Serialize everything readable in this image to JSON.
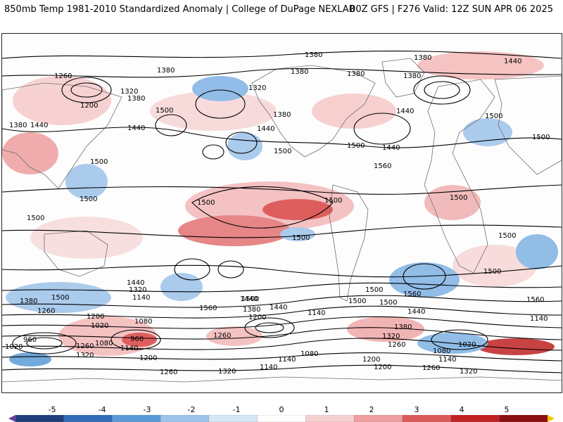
{
  "header": {
    "left_title": "850mb Temp 1981-2010 Standardized Anomaly | College of DuPage NEXLAB",
    "right_title": "00Z GFS | F276 Valid: 12Z SUN APR 06 2025"
  },
  "map": {
    "contour_labels": [
      "1380",
      "1380",
      "1380",
      "1380",
      "1380",
      "1380",
      "1440",
      "1440",
      "1260",
      "1320",
      "1200",
      "1380",
      "1500",
      "1380",
      "1440",
      "1320",
      "1440",
      "1380",
      "1440",
      "1500",
      "1500",
      "1500",
      "1500",
      "1440",
      "1500",
      "1560",
      "1500",
      "1500",
      "1500",
      "1500",
      "1500",
      "1500",
      "1500",
      "1500",
      "1560",
      "1440",
      "1380",
      "1500",
      "1440",
      "1320",
      "1440",
      "1140",
      "1260",
      "1200",
      "1020",
      "1080",
      "960",
      "1140",
      "1080",
      "1260",
      "960",
      "1020",
      "1320",
      "1200",
      "1380",
      "1500",
      "1200",
      "1140",
      "1140",
      "1080",
      "1320",
      "1380",
      "1260",
      "1140",
      "1020",
      "1080",
      "1200",
      "1140",
      "1200",
      "1260",
      "1320",
      "1440",
      "1500",
      "1500",
      "1560",
      "1560",
      "1500",
      "1140",
      "1320",
      "1260",
      "1260"
    ],
    "colors": {
      "cold_strong": "#1f4fa8",
      "cold": "#4a90d9",
      "cool": "#a9cdef",
      "warm": "#f2aaaa",
      "hot": "#d94343",
      "hot_strong": "#9e1b1b",
      "land": "#777777"
    }
  },
  "colorbar": {
    "ticks": [
      "-5",
      "-4",
      "-3",
      "-2",
      "-1",
      "0",
      "1",
      "2",
      "3",
      "4",
      "5"
    ],
    "colors": [
      "#6a3d9a",
      "#1f3f7a",
      "#2f6bb8",
      "#5b9ad6",
      "#9cc3ea",
      "#d5e6f5",
      "#ffffff",
      "#f7d0d0",
      "#ee9e9e",
      "#dc5a5a",
      "#c02222",
      "#8b0f0f",
      "#f2c300"
    ]
  }
}
